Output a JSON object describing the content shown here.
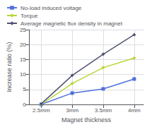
{
  "chart_data": {
    "type": "line",
    "xlabel": "Magnet thickness",
    "ylabel": "Increase ratio (%)",
    "x": [
      2.5,
      3.0,
      3.5,
      4.0
    ],
    "xlim": [
      2.3,
      4.15
    ],
    "xticks": [
      {
        "value": 2.5,
        "label": "2.5mm"
      },
      {
        "value": 3.0,
        "label": "3mm"
      },
      {
        "value": 3.5,
        "label": "3.5mm"
      },
      {
        "value": 4.0,
        "label": "4mm"
      }
    ],
    "ylim": [
      0,
      25
    ],
    "yticks": [
      0,
      5,
      10,
      15,
      20,
      25
    ],
    "grid": true,
    "legend": "upper left",
    "series": [
      {
        "name": "No-load induced voltage",
        "marker": "square",
        "values": [
          0.0,
          3.8,
          5.2,
          8.5
        ]
      },
      {
        "name": "Torque",
        "marker": "diamond",
        "values": [
          0.0,
          7.0,
          12.3,
          15.5
        ]
      },
      {
        "name": "Average magnetic flux density in magnet",
        "marker": "diamond",
        "values": [
          0.2,
          9.7,
          16.8,
          23.3
        ]
      }
    ]
  }
}
